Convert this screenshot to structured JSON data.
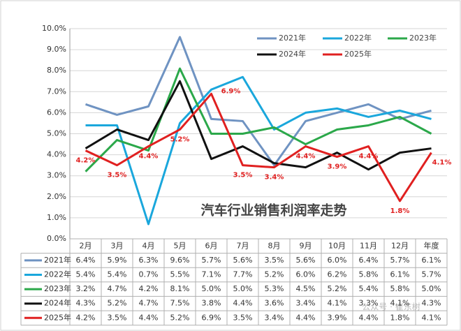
{
  "chart_data": {
    "type": "line",
    "title": "汽车行业销售利润率走势",
    "watermark": "公众号 · 崔东树",
    "categories": [
      "2月",
      "3月",
      "4月",
      "5月",
      "6月",
      "7月",
      "8月",
      "9月",
      "10月",
      "11月",
      "12月",
      "年度"
    ],
    "ylim": [
      0,
      10
    ],
    "yticks": [
      {
        "value": 0,
        "label": "0.0%"
      },
      {
        "value": 1,
        "label": "1.0%"
      },
      {
        "value": 2,
        "label": "2.0%"
      },
      {
        "value": 3,
        "label": "3.0%"
      },
      {
        "value": 4,
        "label": "4.0%"
      },
      {
        "value": 5,
        "label": "5.0%"
      },
      {
        "value": 6,
        "label": "6.0%"
      },
      {
        "value": 7,
        "label": "7.0%"
      },
      {
        "value": 8,
        "label": "8.0%"
      },
      {
        "value": 9,
        "label": "9.0%"
      },
      {
        "value": 10,
        "label": "10.0%"
      }
    ],
    "grid": true,
    "series": [
      {
        "name": "2021年",
        "color": "#6f93c2",
        "values": [
          6.4,
          5.9,
          6.3,
          9.6,
          5.7,
          5.6,
          3.5,
          5.6,
          6.0,
          6.4,
          5.7,
          6.1
        ],
        "value_labels": [
          "6.4%",
          "5.9%",
          "6.3%",
          "9.6%",
          "5.7%",
          "5.6%",
          "3.5%",
          "5.6%",
          "6.0%",
          "6.4%",
          "5.7%",
          "6.1%"
        ]
      },
      {
        "name": "2022年",
        "color": "#1aa7dc",
        "values": [
          5.4,
          5.4,
          0.7,
          5.5,
          7.1,
          7.7,
          5.2,
          6.0,
          6.2,
          5.8,
          6.1,
          5.7
        ],
        "value_labels": [
          "5.4%",
          "5.4%",
          "0.7%",
          "5.5%",
          "7.1%",
          "7.7%",
          "5.2%",
          "6.0%",
          "6.2%",
          "5.8%",
          "6.1%",
          "5.7%"
        ]
      },
      {
        "name": "2023年",
        "color": "#2ba84a",
        "values": [
          3.2,
          4.7,
          4.2,
          8.1,
          5.0,
          5.0,
          5.3,
          4.5,
          5.2,
          5.4,
          5.8,
          5.0
        ],
        "value_labels": [
          "3.2%",
          "4.7%",
          "4.2%",
          "8.1%",
          "5.0%",
          "5.0%",
          "5.3%",
          "4.5%",
          "5.2%",
          "5.4%",
          "5.8%",
          "5.0%"
        ]
      },
      {
        "name": "2024年",
        "color": "#111111",
        "values": [
          4.3,
          5.2,
          4.7,
          7.5,
          3.8,
          4.4,
          3.6,
          3.4,
          4.1,
          3.3,
          4.1,
          4.3
        ],
        "value_labels": [
          "4.3%",
          "5.2%",
          "4.7%",
          "7.5%",
          "3.8%",
          "4.4%",
          "3.6%",
          "3.4%",
          "4.1%",
          "3.3%",
          "4.1%",
          "4.3%"
        ]
      },
      {
        "name": "2025年",
        "color": "#e02020",
        "values": [
          4.2,
          3.5,
          4.4,
          5.2,
          6.9,
          3.5,
          3.4,
          4.4,
          3.9,
          4.4,
          1.8,
          4.1
        ],
        "value_labels": [
          "4.2%",
          "3.5%",
          "4.4%",
          "5.2%",
          "6.9%",
          "3.5%",
          "3.4%",
          "4.4%",
          "3.9%",
          "4.4%",
          "1.8%",
          "4.1%"
        ],
        "show_point_labels": true
      }
    ]
  }
}
